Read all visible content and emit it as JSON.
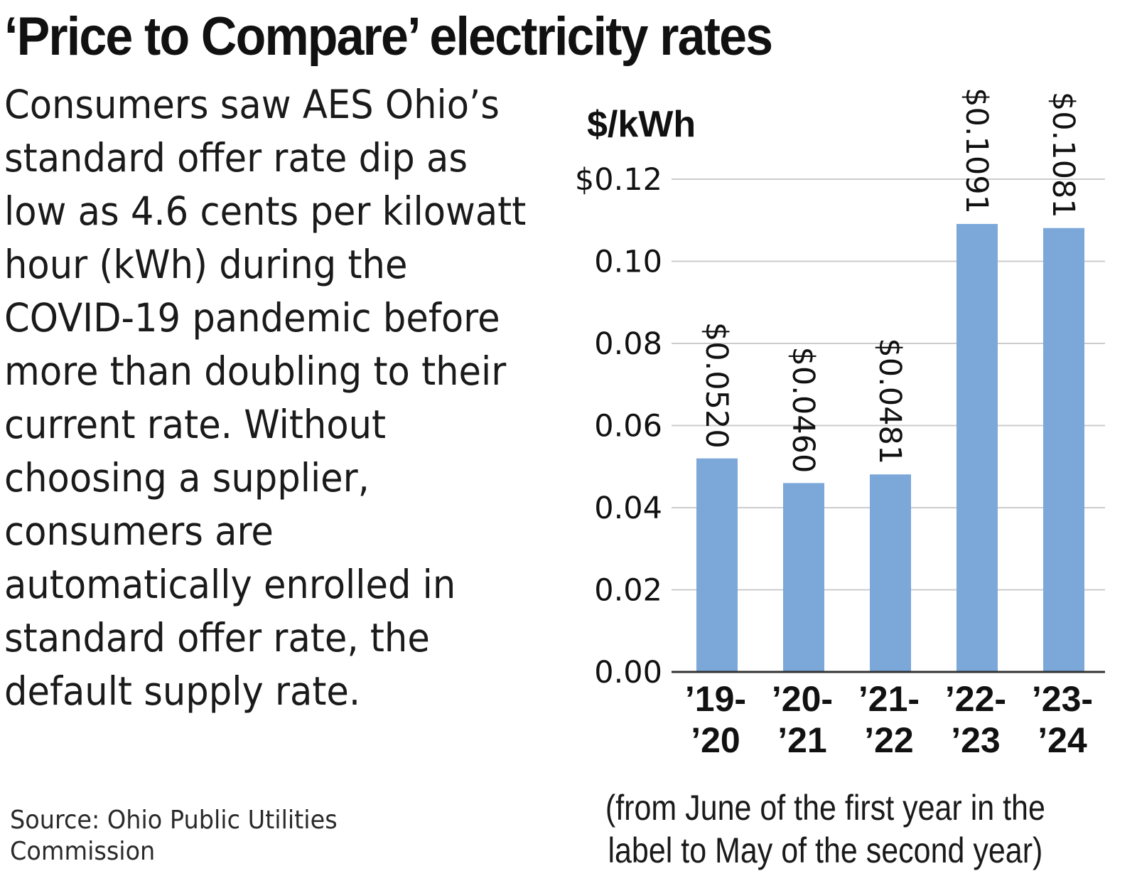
{
  "title": "‘Price to Compare’ electricity rates",
  "description": "Consumers saw AES Ohio’s standard offer rate dip as low as 4.6 cents per kilowatt hour (kWh) during the COVID-19 pandemic before more than doubling to their current rate. Without choosing a supplier, consumers are automatically enrolled in standard offer rate, the default supply rate.",
  "source": "Source: Ohio Public Utilities Commission",
  "colors": {
    "bar": "#7ba7d9",
    "grid": "#cccccc",
    "axis": "#333333"
  },
  "chart_data": {
    "type": "bar",
    "ylabel": "$/kWh",
    "categories": [
      {
        "line1": "’19-",
        "line2": "’20"
      },
      {
        "line1": "’20-",
        "line2": "’21"
      },
      {
        "line1": "’21-",
        "line2": "’22"
      },
      {
        "line1": "’22-",
        "line2": "’23"
      },
      {
        "line1": "’23-",
        "line2": "’24"
      }
    ],
    "values": [
      0.052,
      0.046,
      0.0481,
      0.1091,
      0.1081
    ],
    "data_labels": [
      "$0.0520",
      "$0.0460",
      "$0.0481",
      "$0.1091",
      "$0.1081"
    ],
    "ylim": [
      0,
      0.12
    ],
    "yticks": [
      {
        "value": 0.12,
        "label": "$0.12"
      },
      {
        "value": 0.1,
        "label": "0.10"
      },
      {
        "value": 0.08,
        "label": "0.08"
      },
      {
        "value": 0.06,
        "label": "0.06"
      },
      {
        "value": 0.04,
        "label": "0.04"
      },
      {
        "value": 0.02,
        "label": "0.02"
      },
      {
        "value": 0.0,
        "label": "0.00"
      }
    ],
    "note": "(from June of the first year in the label to May of the second year)",
    "grid": true
  }
}
